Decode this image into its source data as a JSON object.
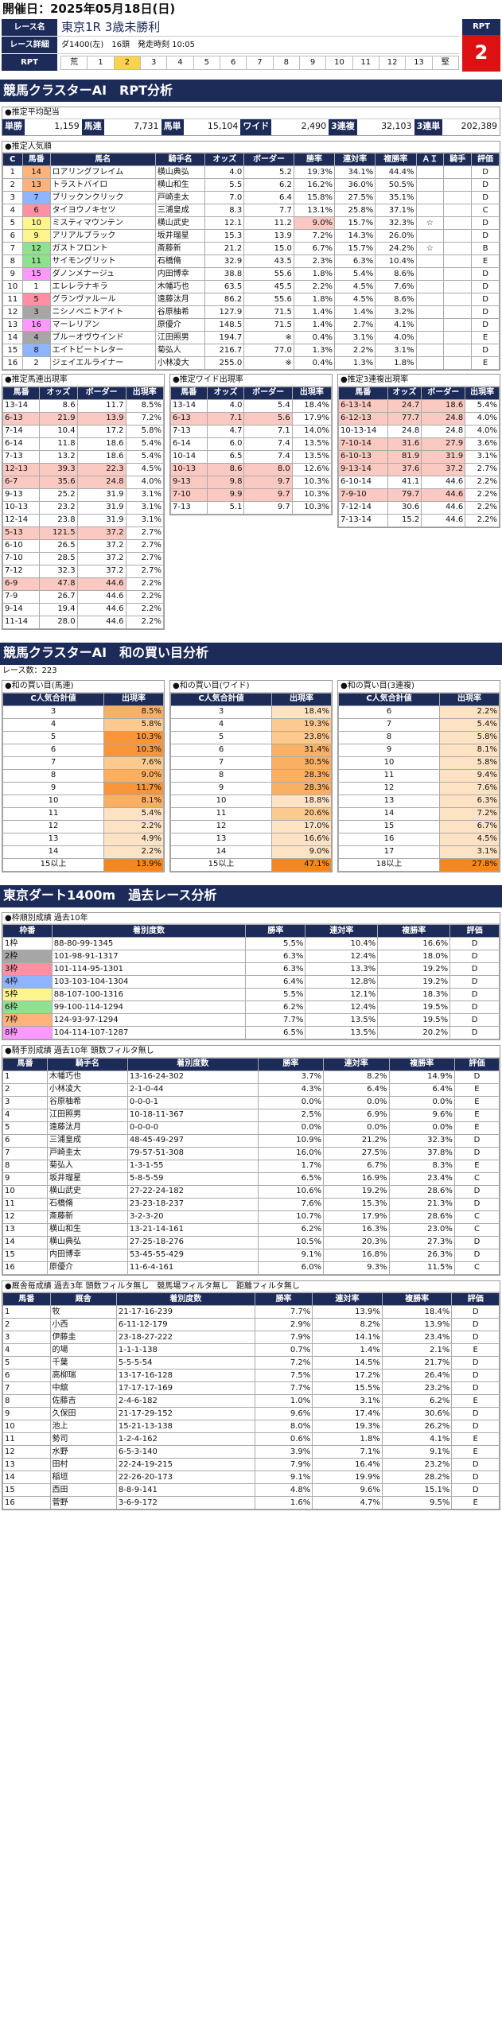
{
  "date": "開催日：2025年05月18日(日)",
  "race": {
    "name_label": "レース名",
    "name": "東京1R 3歳未勝利",
    "detail_label": "レース詳細",
    "detail": "ダ1400(左)　16頭　発走時刻 10:05",
    "rpt_label": "RPT",
    "rpt_head": "RPT",
    "rpt_value": "2",
    "rpt_cells": [
      "荒",
      "1",
      "2",
      "3",
      "4",
      "5",
      "6",
      "7",
      "8",
      "9",
      "10",
      "11",
      "12",
      "13",
      "堅"
    ]
  },
  "ai_title": "競馬クラスターAI　RPT分析",
  "odds": {
    "title": "●推定平均配当",
    "items": [
      {
        "k": "単勝",
        "v": "1,159"
      },
      {
        "k": "馬連",
        "v": "7,731"
      },
      {
        "k": "馬単",
        "v": "15,104"
      },
      {
        "k": "ワイド",
        "v": "2,490"
      },
      {
        "k": "3連複",
        "v": "32,103"
      },
      {
        "k": "3連単",
        "v": "202,389"
      }
    ]
  },
  "pop": {
    "title": "●推定人気順",
    "headers": [
      "C",
      "馬番",
      "馬名",
      "騎手名",
      "オッズ",
      "ボーダー",
      "勝率",
      "連対率",
      "複勝率",
      "ＡＩ",
      "騎手",
      "評価"
    ],
    "rows": [
      [
        "1",
        "14",
        "ロアリングフレイム",
        "横山典弘",
        "4.0",
        "5.2",
        "19.3%",
        "34.1%",
        "44.4%",
        "",
        "",
        "D"
      ],
      [
        "2",
        "13",
        "トラストバイロ",
        "横山和生",
        "5.5",
        "6.2",
        "16.2%",
        "36.0%",
        "50.5%",
        "",
        "",
        "D"
      ],
      [
        "3",
        "7",
        "ブリックンクリック",
        "戸崎圭太",
        "7.0",
        "6.4",
        "15.8%",
        "27.5%",
        "35.1%",
        "",
        "",
        "D"
      ],
      [
        "4",
        "6",
        "タイヨウノキセツ",
        "三浦皇成",
        "8.3",
        "7.7",
        "13.1%",
        "25.8%",
        "37.1%",
        "",
        "",
        "C"
      ],
      [
        "5",
        "10",
        "ミスティマウンテン",
        "横山武史",
        "12.1",
        "11.2",
        "9.0%",
        "15.7%",
        "32.3%",
        "☆",
        "",
        "D"
      ],
      [
        "6",
        "9",
        "アリアルブラック",
        "坂井瑠星",
        "15.3",
        "13.9",
        "7.2%",
        "14.3%",
        "26.0%",
        "",
        "",
        "D"
      ],
      [
        "7",
        "12",
        "ガストフロント",
        "斎藤新",
        "21.2",
        "15.0",
        "6.7%",
        "15.7%",
        "24.2%",
        "☆",
        "",
        "B"
      ],
      [
        "8",
        "11",
        "サイモングリット",
        "石橋脩",
        "32.9",
        "43.5",
        "2.3%",
        "6.3%",
        "10.4%",
        "",
        "",
        "E"
      ],
      [
        "9",
        "15",
        "ダノンメナージュ",
        "内田博幸",
        "38.8",
        "55.6",
        "1.8%",
        "5.4%",
        "8.6%",
        "",
        "",
        "D"
      ],
      [
        "10",
        "1",
        "エレレラナキラ",
        "木幡巧也",
        "63.5",
        "45.5",
        "2.2%",
        "4.5%",
        "7.6%",
        "",
        "",
        "D"
      ],
      [
        "11",
        "5",
        "グランヴァルール",
        "遠藤汰月",
        "86.2",
        "55.6",
        "1.8%",
        "4.5%",
        "8.6%",
        "",
        "",
        "D"
      ],
      [
        "12",
        "3",
        "ニシノベニトアイト",
        "谷原柚希",
        "127.9",
        "71.5",
        "1.4%",
        "1.4%",
        "3.2%",
        "",
        "",
        "D"
      ],
      [
        "13",
        "16",
        "マーレリアン",
        "原優介",
        "148.5",
        "71.5",
        "1.4%",
        "2.7%",
        "4.1%",
        "",
        "",
        "D"
      ],
      [
        "14",
        "4",
        "ブルーオヴウインド",
        "江田照男",
        "194.7",
        "※",
        "0.4%",
        "3.1%",
        "4.0%",
        "",
        "",
        "E"
      ],
      [
        "15",
        "8",
        "エイトビートレター",
        "菊弘人",
        "216.7",
        "77.0",
        "1.3%",
        "2.2%",
        "3.1%",
        "",
        "",
        "D"
      ],
      [
        "16",
        "2",
        "ジェイエルライナー",
        "小林凌大",
        "255.0",
        "※",
        "0.4%",
        "1.3%",
        "1.8%",
        "",
        "",
        "E"
      ]
    ]
  },
  "est_umaren": {
    "title": "●推定馬連出現率",
    "headers": [
      "馬番",
      "オッズ",
      "ボーダー",
      "出現率"
    ],
    "rows": [
      [
        "13-14",
        "8.6",
        "11.7",
        "8.5%"
      ],
      [
        "6-13",
        "21.9",
        "13.9",
        "7.2%"
      ],
      [
        "7-14",
        "10.4",
        "17.2",
        "5.8%"
      ],
      [
        "6-14",
        "11.8",
        "18.6",
        "5.4%"
      ],
      [
        "7-13",
        "13.2",
        "18.6",
        "5.4%"
      ],
      [
        "12-13",
        "39.3",
        "22.3",
        "4.5%"
      ],
      [
        "6-7",
        "35.6",
        "24.8",
        "4.0%"
      ],
      [
        "9-13",
        "25.2",
        "31.9",
        "3.1%"
      ],
      [
        "10-13",
        "23.2",
        "31.9",
        "3.1%"
      ],
      [
        "12-14",
        "23.8",
        "31.9",
        "3.1%"
      ],
      [
        "5-13",
        "121.5",
        "37.2",
        "2.7%"
      ],
      [
        "6-10",
        "26.5",
        "37.2",
        "2.7%"
      ],
      [
        "7-10",
        "28.5",
        "37.2",
        "2.7%"
      ],
      [
        "7-12",
        "32.3",
        "37.2",
        "2.7%"
      ],
      [
        "6-9",
        "47.8",
        "44.6",
        "2.2%"
      ],
      [
        "7-9",
        "26.7",
        "44.6",
        "2.2%"
      ],
      [
        "9-14",
        "19.4",
        "44.6",
        "2.2%"
      ],
      [
        "11-14",
        "28.0",
        "44.6",
        "2.2%"
      ]
    ]
  },
  "est_wide": {
    "title": "●推定ワイド出現率",
    "headers": [
      "馬番",
      "オッズ",
      "ボーダー",
      "出現率"
    ],
    "rows": [
      [
        "13-14",
        "4.0",
        "5.4",
        "18.4%"
      ],
      [
        "6-13",
        "7.1",
        "5.6",
        "17.9%"
      ],
      [
        "7-13",
        "4.7",
        "7.1",
        "14.0%"
      ],
      [
        "6-14",
        "6.0",
        "7.4",
        "13.5%"
      ],
      [
        "10-14",
        "6.5",
        "7.4",
        "13.5%"
      ],
      [
        "10-13",
        "8.6",
        "8.0",
        "12.6%"
      ],
      [
        "9-13",
        "9.8",
        "9.7",
        "10.3%"
      ],
      [
        "7-10",
        "9.9",
        "9.7",
        "10.3%"
      ],
      [
        "7-13",
        "5.1",
        "9.7",
        "10.3%"
      ]
    ]
  },
  "est_sanren": {
    "title": "●推定3連複出現率",
    "headers": [
      "馬番",
      "オッズ",
      "ボーダー",
      "出現率"
    ],
    "rows": [
      [
        "6-13-14",
        "24.7",
        "18.6",
        "5.4%"
      ],
      [
        "6-12-13",
        "77.7",
        "24.8",
        "4.0%"
      ],
      [
        "10-13-14",
        "24.8",
        "24.8",
        "4.0%"
      ],
      [
        "7-10-14",
        "31.6",
        "27.9",
        "3.6%"
      ],
      [
        "6-10-13",
        "81.9",
        "31.9",
        "3.1%"
      ],
      [
        "9-13-14",
        "37.6",
        "37.2",
        "2.7%"
      ],
      [
        "6-10-14",
        "41.1",
        "44.6",
        "2.2%"
      ],
      [
        "7-9-10",
        "79.7",
        "44.6",
        "2.2%"
      ],
      [
        "7-12-14",
        "30.6",
        "44.6",
        "2.2%"
      ],
      [
        "7-13-14",
        "15.2",
        "44.6",
        "2.2%"
      ]
    ]
  },
  "wa_title": "競馬クラスターAI　和の買い目分析",
  "wa_count": "レース数：223",
  "wa_umaren": {
    "title": "●和の買い目(馬連)",
    "h1": "C人気合計値",
    "h2": "出現率",
    "rows": [
      [
        "3",
        "8.5%"
      ],
      [
        "4",
        "5.8%"
      ],
      [
        "5",
        "10.3%"
      ],
      [
        "6",
        "10.3%"
      ],
      [
        "7",
        "7.6%"
      ],
      [
        "8",
        "9.0%"
      ],
      [
        "9",
        "11.7%"
      ],
      [
        "10",
        "8.1%"
      ],
      [
        "11",
        "5.4%"
      ],
      [
        "12",
        "2.2%"
      ],
      [
        "13",
        "4.9%"
      ],
      [
        "14",
        "2.2%"
      ],
      [
        "15以上",
        "13.9%"
      ]
    ]
  },
  "wa_wide": {
    "title": "●和の買い目(ワイド)",
    "h1": "C人気合計値",
    "h2": "出現率",
    "rows": [
      [
        "3",
        "18.4%"
      ],
      [
        "4",
        "19.3%"
      ],
      [
        "5",
        "23.8%"
      ],
      [
        "6",
        "31.4%"
      ],
      [
        "7",
        "30.5%"
      ],
      [
        "8",
        "28.3%"
      ],
      [
        "9",
        "28.3%"
      ],
      [
        "10",
        "18.8%"
      ],
      [
        "11",
        "20.6%"
      ],
      [
        "12",
        "17.0%"
      ],
      [
        "13",
        "16.6%"
      ],
      [
        "14",
        "9.0%"
      ],
      [
        "15以上",
        "47.1%"
      ]
    ]
  },
  "wa_sanren": {
    "title": "●和の買い目(3連複)",
    "h1": "C人気合計値",
    "h2": "出現率",
    "rows": [
      [
        "6",
        "2.2%"
      ],
      [
        "7",
        "5.4%"
      ],
      [
        "8",
        "5.8%"
      ],
      [
        "9",
        "8.1%"
      ],
      [
        "10",
        "5.8%"
      ],
      [
        "11",
        "9.4%"
      ],
      [
        "12",
        "7.6%"
      ],
      [
        "13",
        "6.3%"
      ],
      [
        "14",
        "7.2%"
      ],
      [
        "15",
        "6.7%"
      ],
      [
        "16",
        "4.5%"
      ],
      [
        "17",
        "3.1%"
      ],
      [
        "18以上",
        "27.8%"
      ]
    ]
  },
  "past_title": "東京ダート1400m　過去レース分析",
  "waku": {
    "title": "●枠順別成績 過去10年",
    "headers": [
      "枠番",
      "着別度数",
      "勝率",
      "連対率",
      "複勝率",
      "評価"
    ],
    "rows": [
      [
        "1枠",
        "88-80-99-1345",
        "5.5%",
        "10.4%",
        "16.6%",
        "D"
      ],
      [
        "2枠",
        "101-98-91-1317",
        "6.3%",
        "12.4%",
        "18.0%",
        "D"
      ],
      [
        "3枠",
        "101-114-95-1301",
        "6.3%",
        "13.3%",
        "19.2%",
        "D"
      ],
      [
        "4枠",
        "103-103-104-1304",
        "6.4%",
        "12.8%",
        "19.2%",
        "D"
      ],
      [
        "5枠",
        "88-107-100-1316",
        "5.5%",
        "12.1%",
        "18.3%",
        "D"
      ],
      [
        "6枠",
        "99-100-114-1294",
        "6.2%",
        "12.4%",
        "19.5%",
        "D"
      ],
      [
        "7枠",
        "124-93-97-1294",
        "7.7%",
        "13.5%",
        "19.5%",
        "D"
      ],
      [
        "8枠",
        "104-114-107-1287",
        "6.5%",
        "13.5%",
        "20.2%",
        "D"
      ]
    ]
  },
  "jockey": {
    "title": "●騎手別成績 過去10年 頭数フィルタ無し",
    "headers": [
      "馬番",
      "騎手名",
      "着別度数",
      "勝率",
      "連対率",
      "複勝率",
      "評価"
    ],
    "rows": [
      [
        "1",
        "木幡巧也",
        "13-16-24-302",
        "3.7%",
        "8.2%",
        "14.9%",
        "D"
      ],
      [
        "2",
        "小林凌大",
        "2-1-0-44",
        "4.3%",
        "6.4%",
        "6.4%",
        "E"
      ],
      [
        "3",
        "谷原柚希",
        "0-0-0-1",
        "0.0%",
        "0.0%",
        "0.0%",
        "E"
      ],
      [
        "4",
        "江田照男",
        "10-18-11-367",
        "2.5%",
        "6.9%",
        "9.6%",
        "E"
      ],
      [
        "5",
        "遠藤汰月",
        "0-0-0-0",
        "0.0%",
        "0.0%",
        "0.0%",
        "E"
      ],
      [
        "6",
        "三浦皇成",
        "48-45-49-297",
        "10.9%",
        "21.2%",
        "32.3%",
        "D"
      ],
      [
        "7",
        "戸崎圭太",
        "79-57-51-308",
        "16.0%",
        "27.5%",
        "37.8%",
        "D"
      ],
      [
        "8",
        "菊弘人",
        "1-3-1-55",
        "1.7%",
        "6.7%",
        "8.3%",
        "E"
      ],
      [
        "9",
        "坂井瑠星",
        "5-8-5-59",
        "6.5%",
        "16.9%",
        "23.4%",
        "C"
      ],
      [
        "10",
        "横山武史",
        "27-22-24-182",
        "10.6%",
        "19.2%",
        "28.6%",
        "D"
      ],
      [
        "11",
        "石橋脩",
        "23-23-18-237",
        "7.6%",
        "15.3%",
        "21.3%",
        "D"
      ],
      [
        "12",
        "斎藤新",
        "3-2-3-20",
        "10.7%",
        "17.9%",
        "28.6%",
        "C"
      ],
      [
        "13",
        "横山和生",
        "13-21-14-161",
        "6.2%",
        "16.3%",
        "23.0%",
        "C"
      ],
      [
        "14",
        "横山典弘",
        "27-25-18-276",
        "10.5%",
        "20.3%",
        "27.3%",
        "D"
      ],
      [
        "15",
        "内田博幸",
        "53-45-55-429",
        "9.1%",
        "16.8%",
        "26.3%",
        "D"
      ],
      [
        "16",
        "原優介",
        "11-6-4-161",
        "6.0%",
        "9.3%",
        "11.5%",
        "C"
      ]
    ]
  },
  "trainer": {
    "title": "●厩舎毎成績 過去3年 頭数フィルタ無し　競馬場フィルタ無し　距離フィルタ無し",
    "headers": [
      "馬番",
      "厩舎",
      "着別度数",
      "勝率",
      "連対率",
      "複勝率",
      "評価"
    ],
    "rows": [
      [
        "1",
        "牧",
        "21-17-16-239",
        "7.7%",
        "13.9%",
        "18.4%",
        "D"
      ],
      [
        "2",
        "小西",
        "6-11-12-179",
        "2.9%",
        "8.2%",
        "13.9%",
        "D"
      ],
      [
        "3",
        "伊藤圭",
        "23-18-27-222",
        "7.9%",
        "14.1%",
        "23.4%",
        "D"
      ],
      [
        "4",
        "的場",
        "1-1-1-138",
        "0.7%",
        "1.4%",
        "2.1%",
        "E"
      ],
      [
        "5",
        "千葉",
        "5-5-5-54",
        "7.2%",
        "14.5%",
        "21.7%",
        "D"
      ],
      [
        "6",
        "高柳瑞",
        "13-17-16-128",
        "7.5%",
        "17.2%",
        "26.4%",
        "D"
      ],
      [
        "7",
        "中舘",
        "17-17-17-169",
        "7.7%",
        "15.5%",
        "23.2%",
        "D"
      ],
      [
        "8",
        "佐藤吉",
        "2-4-6-182",
        "1.0%",
        "3.1%",
        "6.2%",
        "E"
      ],
      [
        "9",
        "久保田",
        "21-17-29-152",
        "9.6%",
        "17.4%",
        "30.6%",
        "D"
      ],
      [
        "10",
        "池上",
        "15-21-13-138",
        "8.0%",
        "19.3%",
        "26.2%",
        "D"
      ],
      [
        "11",
        "勢司",
        "1-2-4-162",
        "0.6%",
        "1.8%",
        "4.1%",
        "E"
      ],
      [
        "12",
        "水野",
        "6-5-3-140",
        "3.9%",
        "7.1%",
        "9.1%",
        "E"
      ],
      [
        "13",
        "田村",
        "22-24-19-215",
        "7.9%",
        "16.4%",
        "23.2%",
        "D"
      ],
      [
        "14",
        "稲垣",
        "22-26-20-173",
        "9.1%",
        "19.9%",
        "28.2%",
        "D"
      ],
      [
        "15",
        "西田",
        "8-8-9-141",
        "4.8%",
        "9.6%",
        "15.1%",
        "D"
      ],
      [
        "16",
        "菅野",
        "3-6-9-172",
        "1.6%",
        "4.7%",
        "9.5%",
        "E"
      ]
    ]
  }
}
